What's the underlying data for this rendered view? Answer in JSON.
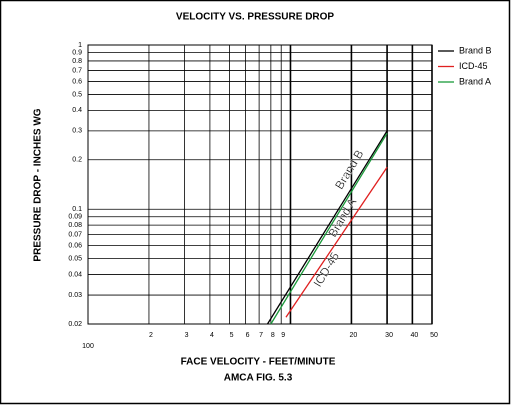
{
  "chart_data": {
    "type": "line",
    "title": "VELOCITY VS. PRESSURE DROP",
    "xlabel": "FACE VELOCITY - FEET/MINUTE",
    "subtitle": "AMCA FIG. 5.3",
    "ylabel": "PRESSURE DROP - INCHES WG",
    "log_x": true,
    "log_y": true,
    "grid": true,
    "legend": "right",
    "xlim": [
      100,
      5000
    ],
    "ylim": [
      0.02,
      1
    ],
    "xticks": [
      {
        "value": 100,
        "label": "100"
      },
      {
        "value": 200,
        "label": "2"
      },
      {
        "value": 300,
        "label": "3"
      },
      {
        "value": 400,
        "label": "4"
      },
      {
        "value": 500,
        "label": "5"
      },
      {
        "value": 600,
        "label": "6"
      },
      {
        "value": 700,
        "label": "7"
      },
      {
        "value": 800,
        "label": "8"
      },
      {
        "value": 900,
        "label": "9"
      },
      {
        "value": 1000,
        "label": null
      },
      {
        "value": 2000,
        "label": "20"
      },
      {
        "value": 3000,
        "label": "30"
      },
      {
        "value": 4000,
        "label": "40"
      },
      {
        "value": 5000,
        "label": "50"
      }
    ],
    "yticks": [
      0.02,
      0.03,
      0.04,
      0.05,
      0.06,
      0.07,
      0.08,
      0.09,
      0.1,
      0.2,
      0.3,
      0.4,
      0.5,
      0.6,
      0.7,
      0.8,
      0.9,
      1
    ],
    "series": [
      {
        "name": "Brand B",
        "color": "#000000",
        "x": [
          770,
          3000
        ],
        "values": [
          0.02,
          0.3
        ]
      },
      {
        "name": "ICD-45",
        "color": "#e02020",
        "x": [
          950,
          3000
        ],
        "values": [
          0.022,
          0.18
        ]
      },
      {
        "name": "Brand A",
        "color": "#1a9a3a",
        "x": [
          800,
          3000
        ],
        "values": [
          0.02,
          0.29
        ]
      }
    ],
    "annotations": [
      "Brand B",
      "Brand A",
      "ICD-45"
    ]
  }
}
